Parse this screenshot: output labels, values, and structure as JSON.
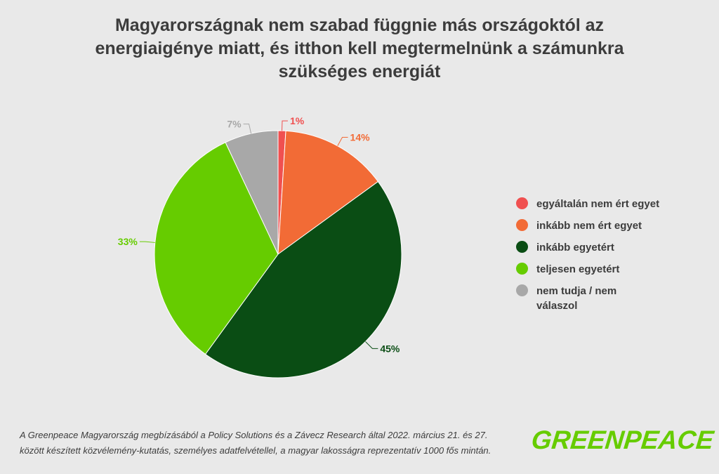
{
  "title_lines": [
    "Magyarországnak nem szabad függnie más országoktól az",
    "energiaigénye miatt, és itthon kell megtermelnünk a számunkra",
    "szükséges energiát"
  ],
  "chart_data": {
    "type": "pie",
    "title": "Magyarországnak nem szabad függnie más országoktól az energiaigénye miatt, és itthon kell megtermelnünk a számunkra szükséges energiát",
    "unit": "%",
    "slices": [
      {
        "name": "egyáltalán nem ért egyet",
        "value": 1,
        "label": "1%",
        "color": "#f05050"
      },
      {
        "name": "inkább nem ért egyet",
        "value": 14,
        "label": "14%",
        "color": "#f26b36"
      },
      {
        "name": "inkább egyetért",
        "value": 45,
        "label": "45%",
        "color": "#0a4d14"
      },
      {
        "name": "teljesen egyetért",
        "value": 33,
        "label": "33%",
        "color": "#66cc00"
      },
      {
        "name": "nem tudja / nem válaszol",
        "value": 7,
        "label": "7%",
        "color": "#a8a8a8"
      }
    ],
    "legend_position": "right",
    "label_colors": {
      "egyáltalán nem ért egyet": "#f05050",
      "inkább nem ért egyet": "#f26b36",
      "inkább egyetért": "#0a4d14",
      "teljesen egyetért": "#66cc00",
      "nem tudja / nem válaszol": "#a8a8a8"
    }
  },
  "legend": [
    {
      "label": "egyáltalán nem ért egyet",
      "color": "#f05050"
    },
    {
      "label": "inkább nem ért egyet",
      "color": "#f26b36"
    },
    {
      "label": "inkább egyetért",
      "color": "#0a4d14"
    },
    {
      "label": "teljesen egyetért",
      "color": "#66cc00"
    },
    {
      "label": "nem tudja / nem válaszol",
      "color": "#a8a8a8"
    }
  ],
  "source_lines": [
    "A Greenpeace Magyarország megbízásából a Policy Solutions és a Závecz Research által 2022. március 21. és 27.",
    "között készített közvélemény-kutatás, személyes adatfelvétellel, a magyar lakosságra reprezentatív 1000 fős mintán."
  ],
  "logo": "GREENPEACE",
  "colors": {
    "background": "#e9e9e9",
    "text": "#3c3c3c",
    "brand_green": "#66cc00"
  }
}
